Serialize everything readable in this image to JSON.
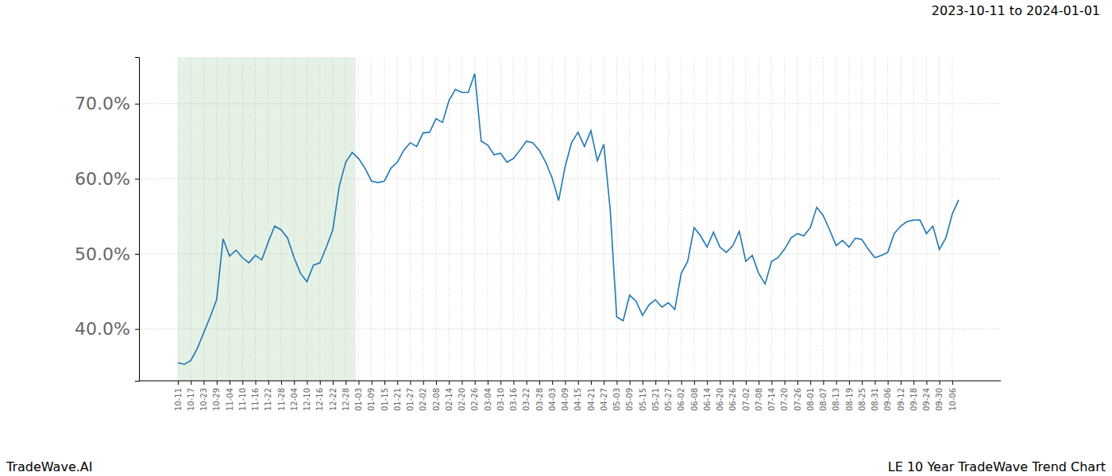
{
  "chart_data": {
    "type": "line",
    "title": "2023-10-11 to 2024-01-01",
    "footer_left": "TradeWave.AI",
    "footer_right": "LE 10 Year TradeWave Trend Chart",
    "categories": [
      "10-11",
      null,
      "10-17",
      null,
      "10-23",
      null,
      "10-29",
      null,
      "11-04",
      null,
      "11-10",
      null,
      "11-16",
      null,
      "11-22",
      null,
      "11-28",
      null,
      "12-04",
      null,
      "12-10",
      null,
      "12-16",
      null,
      "12-22",
      null,
      "12-28",
      null,
      "01-03",
      null,
      "01-09",
      null,
      "01-15",
      null,
      "01-21",
      null,
      "01-27",
      null,
      "02-02",
      null,
      "02-08",
      null,
      "02-14",
      null,
      "02-20",
      null,
      "02-26",
      null,
      "03-04",
      null,
      "03-10",
      null,
      "03-16",
      null,
      "03-22",
      null,
      "03-28",
      null,
      "04-03",
      null,
      "04-09",
      null,
      "04-15",
      null,
      "04-21",
      null,
      "04-27",
      null,
      "05-03",
      null,
      "05-09",
      null,
      "05-15",
      null,
      "05-21",
      null,
      "05-27",
      null,
      "06-02",
      null,
      "06-08",
      null,
      "06-14",
      null,
      "06-20",
      null,
      "06-26",
      null,
      "07-02",
      null,
      "07-08",
      null,
      "07-14",
      null,
      "07-20",
      null,
      "07-26",
      null,
      "08-01",
      null,
      "08-07",
      null,
      "08-13",
      null,
      "08-19",
      null,
      "08-25",
      null,
      "08-31",
      null,
      "09-06",
      null,
      "09-12",
      null,
      "09-18",
      null,
      "09-24",
      null,
      "09-30",
      null,
      "10-06",
      null
    ],
    "values": [
      35.5,
      35.3,
      35.8,
      37.4,
      39.5,
      41.6,
      43.9,
      52.0,
      49.7,
      50.5,
      49.5,
      48.8,
      49.8,
      49.2,
      51.6,
      53.7,
      53.2,
      52.1,
      49.5,
      47.4,
      46.3,
      48.5,
      48.8,
      50.9,
      53.2,
      59.0,
      62.2,
      63.5,
      62.7,
      61.4,
      59.7,
      59.5,
      59.7,
      61.4,
      62.2,
      63.8,
      64.8,
      64.3,
      66.1,
      66.2,
      68.0,
      67.5,
      70.4,
      71.9,
      71.5,
      71.5,
      74.0,
      65.0,
      64.5,
      63.2,
      63.4,
      62.2,
      62.7,
      63.8,
      65.0,
      64.8,
      63.8,
      62.2,
      60.1,
      57.1,
      61.6,
      64.8,
      66.2,
      64.3,
      66.4,
      62.4,
      64.6,
      55.8,
      41.6,
      41.1,
      44.5,
      43.7,
      41.8,
      43.2,
      43.9,
      42.9,
      43.5,
      42.6,
      47.4,
      49.0,
      53.5,
      52.4,
      50.9,
      52.9,
      50.9,
      50.2,
      51.1,
      53.0,
      49.0,
      49.8,
      47.4,
      46.0,
      49.0,
      49.5,
      50.6,
      52.1,
      52.7,
      52.4,
      53.5,
      56.2,
      55.1,
      53.2,
      51.1,
      51.8,
      50.9,
      52.1,
      51.9,
      50.6,
      49.5,
      49.8,
      50.2,
      52.7,
      53.7,
      54.3,
      54.5,
      54.5,
      52.7,
      53.7,
      50.6,
      52.1,
      55.3,
      57.2
    ],
    "color": "#1f77b4",
    "shaded_range": [
      0,
      27.55
    ],
    "ylim": [
      33.1,
      76.2
    ],
    "yticks": [
      {
        "value": 40,
        "label": "40.0%"
      },
      {
        "value": 50,
        "label": "50.0%"
      },
      {
        "value": 60,
        "label": "60.0%"
      },
      {
        "value": 70,
        "label": "70.0%"
      }
    ],
    "grid": true
  }
}
